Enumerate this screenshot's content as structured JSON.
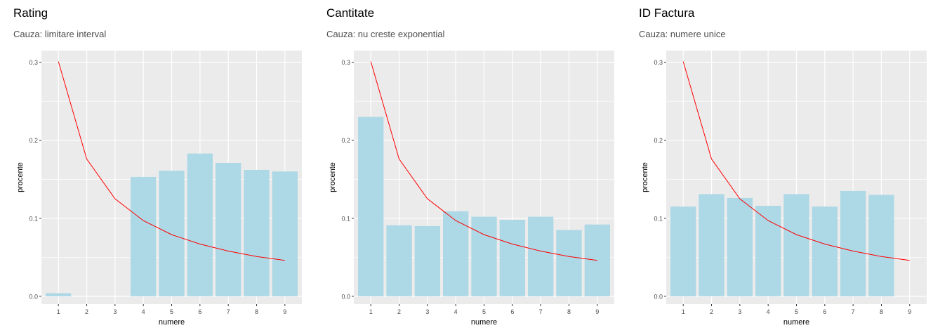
{
  "colors": {
    "bar_fill": "#add8e6",
    "line": "#ff0000",
    "panel_bg": "#ebebeb",
    "grid": "#ffffff",
    "title": "#000000",
    "subtitle": "#4d4d4d",
    "tick_text": "#4d4d4d"
  },
  "chart_data": [
    {
      "type": "bar",
      "title": "Rating",
      "subtitle": "Cauza: limitare interval",
      "xlabel": "numere",
      "ylabel": "procente",
      "categories": [
        "1",
        "2",
        "3",
        "4",
        "5",
        "6",
        "7",
        "8",
        "9"
      ],
      "x_ticks": [
        "1",
        "2",
        "3",
        "4",
        "5",
        "6",
        "7",
        "8",
        "9"
      ],
      "y_ticks": [
        "0.0",
        "0.1",
        "0.2",
        "0.3"
      ],
      "ylim": [
        -0.01,
        0.315
      ],
      "grid": true,
      "series": [
        {
          "values": [
            0.004,
            0,
            0,
            0.153,
            0.161,
            0.183,
            0.171,
            0.162,
            0.16
          ]
        }
      ],
      "benford": [
        0.301,
        0.176,
        0.125,
        0.097,
        0.079,
        0.067,
        0.058,
        0.051,
        0.046
      ]
    },
    {
      "type": "bar",
      "title": "Cantitate",
      "subtitle": "Cauza: nu creste exponential",
      "xlabel": "numere",
      "ylabel": "procente",
      "categories": [
        "1",
        "2",
        "3",
        "4",
        "5",
        "6",
        "7",
        "8",
        "9"
      ],
      "x_ticks": [
        "1",
        "2",
        "3",
        "4",
        "5",
        "6",
        "7",
        "8",
        "9"
      ],
      "y_ticks": [
        "0.0",
        "0.1",
        "0.2",
        "0.3"
      ],
      "ylim": [
        -0.01,
        0.315
      ],
      "grid": true,
      "series": [
        {
          "values": [
            0.23,
            0.091,
            0.09,
            0.109,
            0.102,
            0.098,
            0.102,
            0.085,
            0.092
          ]
        }
      ],
      "benford": [
        0.301,
        0.176,
        0.125,
        0.097,
        0.079,
        0.067,
        0.058,
        0.051,
        0.046
      ]
    },
    {
      "type": "bar",
      "title": "ID Factura",
      "subtitle": "Cauza: numere unice",
      "xlabel": "numere",
      "ylabel": "procente",
      "categories": [
        "1",
        "2",
        "3",
        "4",
        "5",
        "6",
        "7",
        "8",
        "9"
      ],
      "x_ticks": [
        "1",
        "2",
        "3",
        "4",
        "5",
        "6",
        "7",
        "8",
        "9"
      ],
      "y_ticks": [
        "0.0",
        "0.1",
        "0.2",
        "0.3"
      ],
      "ylim": [
        -0.01,
        0.315
      ],
      "grid": true,
      "series": [
        {
          "values": [
            0.115,
            0.131,
            0.126,
            0.116,
            0.131,
            0.115,
            0.135,
            0.13,
            null
          ]
        }
      ],
      "benford": [
        0.301,
        0.176,
        0.125,
        0.097,
        0.079,
        0.067,
        0.058,
        0.051,
        0.046
      ]
    }
  ]
}
